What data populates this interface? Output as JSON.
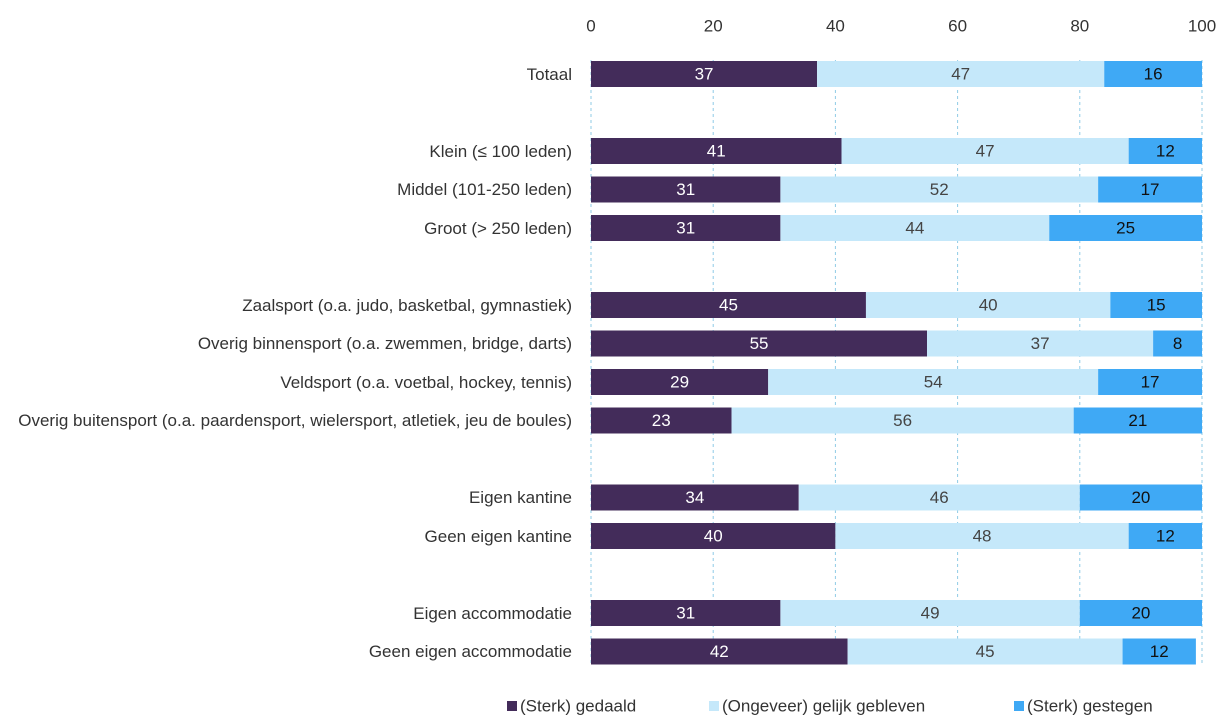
{
  "chart_data": {
    "type": "bar",
    "orientation": "horizontal",
    "stacked": true,
    "categories": [
      "Totaal",
      null,
      "Klein (≤ 100 leden)",
      "Middel (101-250 leden)",
      "Groot (> 250 leden)",
      null,
      "Zaalsport (o.a. judo, basketbal, gymnastiek)",
      "Overig binnensport (o.a. zwemmen, bridge, darts)",
      "Veldsport (o.a. voetbal, hockey, tennis)",
      "Overig buitensport (o.a. paardensport, wielersport, atletiek, jeu de boules)",
      null,
      "Eigen kantine",
      "Geen eigen kantine",
      null,
      "Eigen accommodatie",
      "Geen eigen accommodatie"
    ],
    "series": [
      {
        "name": "(Sterk) gedaald",
        "color": "#432c5a",
        "label_color": "#ffffff",
        "values": [
          37,
          null,
          41,
          31,
          31,
          null,
          45,
          55,
          29,
          23,
          null,
          34,
          40,
          null,
          31,
          42
        ]
      },
      {
        "name": "(Ongeveer) gelijk gebleven",
        "color": "#c5e8fa",
        "label_color": "#444444",
        "values": [
          47,
          null,
          47,
          52,
          44,
          null,
          40,
          37,
          54,
          56,
          null,
          46,
          48,
          null,
          49,
          45
        ]
      },
      {
        "name": "(Sterk) gestegen",
        "color": "#3fa9f5",
        "label_color": "#111111",
        "values": [
          16,
          null,
          12,
          17,
          25,
          null,
          15,
          8,
          17,
          21,
          null,
          20,
          12,
          null,
          20,
          12
        ]
      }
    ],
    "xlim": [
      0,
      100
    ],
    "xticks": [
      0,
      20,
      40,
      60,
      80,
      100
    ],
    "grid": true,
    "legend": "bottom"
  }
}
